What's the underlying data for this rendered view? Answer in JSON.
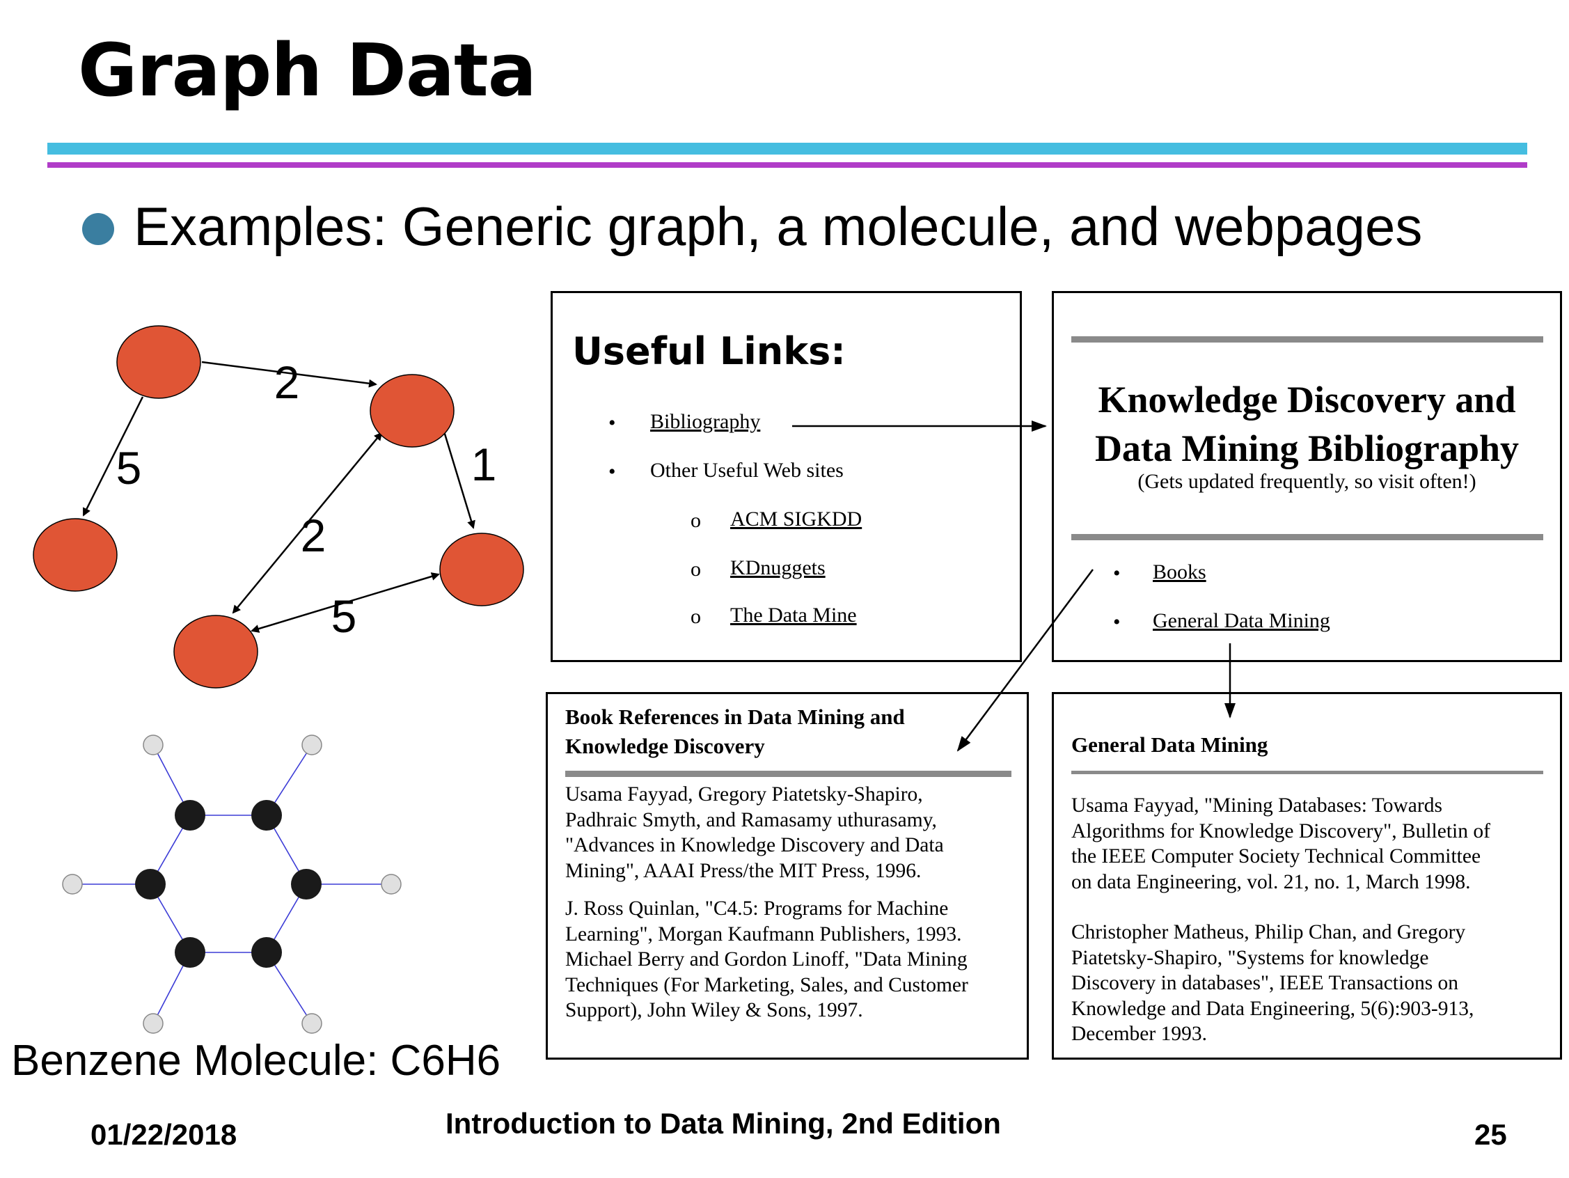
{
  "slide": {
    "title": "Graph Data",
    "bullet": "Examples: Generic graph, a molecule, and webpages"
  },
  "generic_graph": {
    "node_color": "#e05535",
    "edge_weights": [
      "2",
      "5",
      "1",
      "2",
      "5"
    ]
  },
  "benzene": {
    "label": "Benzene Molecule: C6H6",
    "carbon_color": "#1a1a1a",
    "hydrogen_color": "#e0e0e0",
    "bond_color": "#3b3bd6"
  },
  "links_page": {
    "title": "Useful Links:",
    "items": {
      "bibliography": "Bibliography",
      "other": "Other Useful Web sites",
      "acm": "ACM SIGKDD",
      "kdnuggets": "KDnuggets",
      "datamine": "The Data Mine"
    }
  },
  "kdd_page": {
    "title_line1": "Knowledge Discovery and",
    "title_line2": "Data Mining Bibliography",
    "subtitle": "(Gets updated frequently, so visit often!)",
    "links": {
      "books": "Books",
      "general": "General Data Mining"
    }
  },
  "books_page": {
    "heading_line1": "Book References in Data Mining and",
    "heading_line2": "Knowledge Discovery",
    "ref1": [
      "Usama Fayyad, Gregory Piatetsky-Shapiro,",
      "Padhraic Smyth, and Ramasamy uthurasamy,",
      "\"Advances in Knowledge Discovery and Data",
      "Mining\", AAAI Press/the MIT Press, 1996."
    ],
    "ref2": [
      "J. Ross Quinlan, \"C4.5: Programs for Machine",
      "Learning\", Morgan Kaufmann Publishers, 1993.",
      "Michael Berry and Gordon Linoff, \"Data Mining",
      "Techniques (For Marketing, Sales, and Customer",
      "Support), John Wiley & Sons, 1997."
    ]
  },
  "gdm_page": {
    "heading": "General Data Mining",
    "ref1": [
      "Usama Fayyad, \"Mining Databases: Towards",
      "Algorithms for Knowledge Discovery\", Bulletin of",
      "the IEEE Computer Society Technical Committee",
      "on data Engineering, vol. 21, no. 1, March 1998."
    ],
    "ref2": [
      "Christopher Matheus, Philip Chan, and Gregory",
      "Piatetsky-Shapiro, \"Systems for knowledge",
      "Discovery in databases\", IEEE Transactions on",
      "Knowledge and Data Engineering, 5(6):903-913,",
      "December 1993."
    ]
  },
  "footer": {
    "date": "01/22/2018",
    "book": "Introduction to Data Mining, 2nd Edition",
    "page": "25"
  },
  "colors": {
    "rule_top": "#45bde0",
    "rule_bottom": "#b03cc8",
    "bullet": "#3a7ea0"
  }
}
